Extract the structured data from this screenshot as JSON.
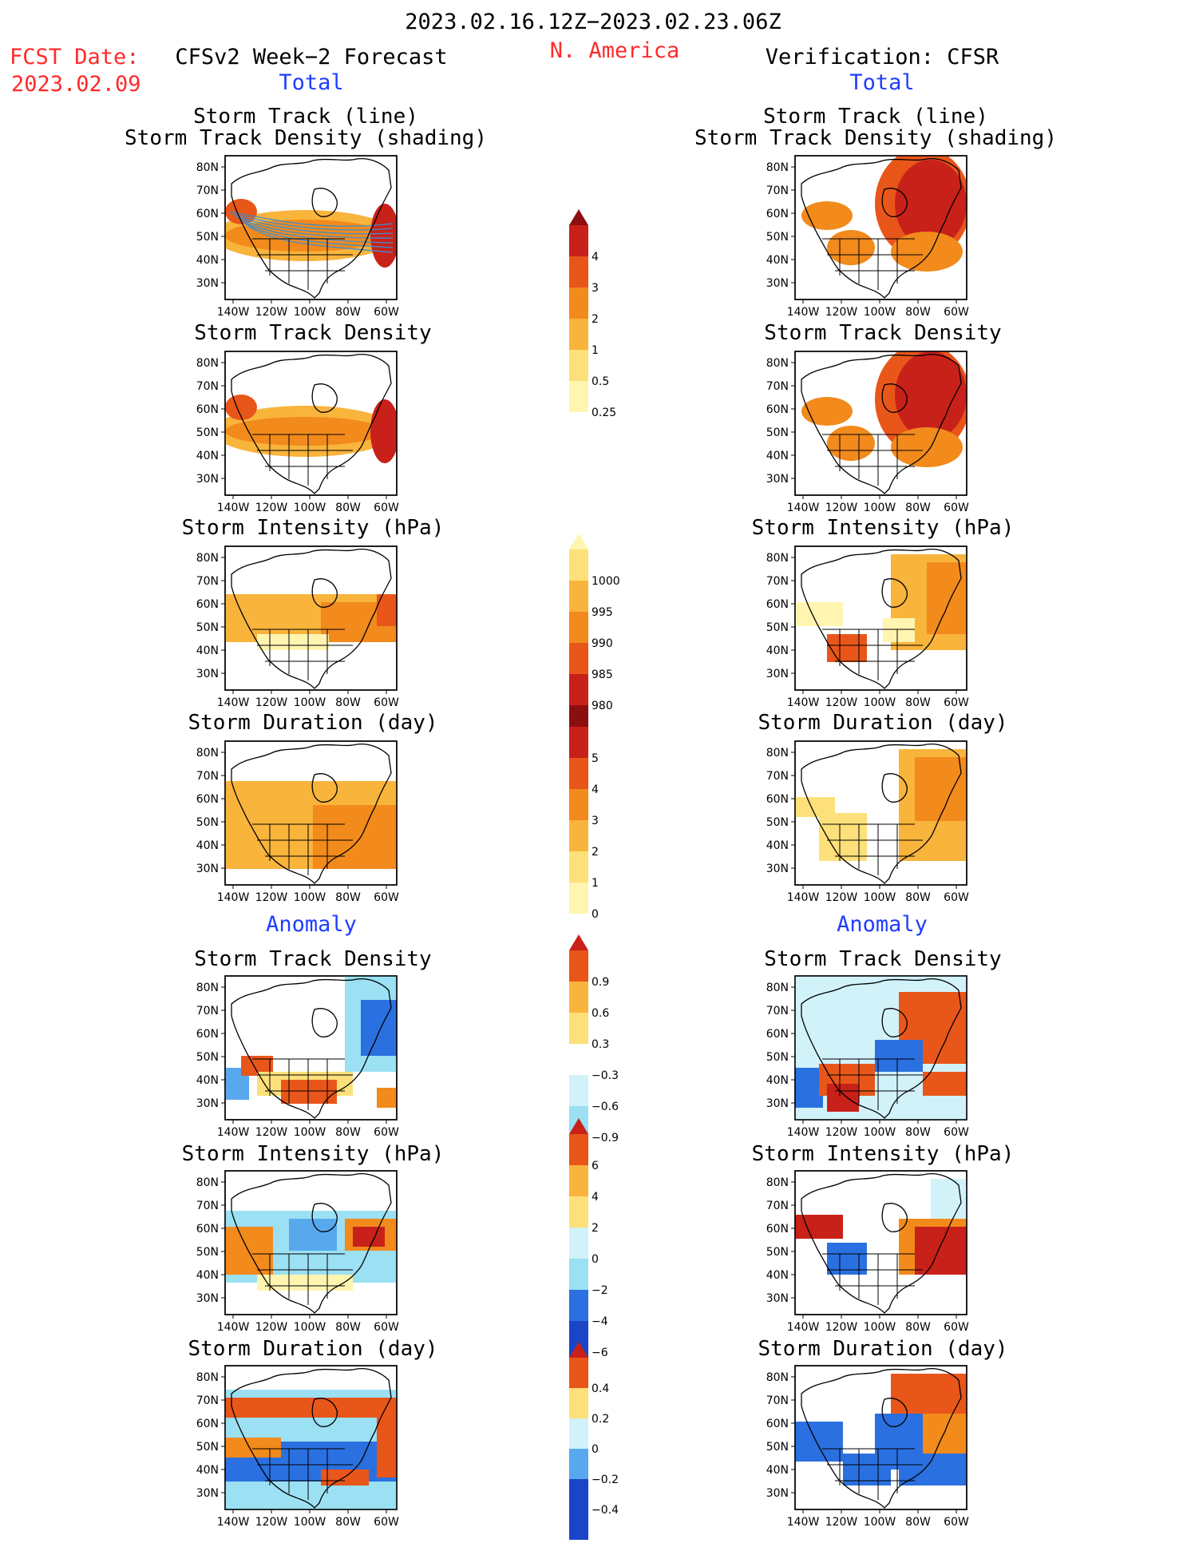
{
  "header": {
    "period": "2023.02.16.12Z−2023.02.23.06Z",
    "fcst_label": "FCST Date:",
    "fcst_date": "2023.02.09",
    "region": "N. America",
    "left_title": "CFSv2 Week−2 Forecast",
    "right_title": "Verification: CFSR",
    "left_section_total": "Total",
    "right_section_total": "Total",
    "left_section_anomaly": "Anomaly",
    "right_section_anomaly": "Anomaly"
  },
  "panel_titles": {
    "track_line": "Storm Track (line)",
    "track_shading": "Storm Track Density (shading)",
    "density": "Storm Track Density",
    "intensity": "Storm Intensity (hPa)",
    "duration": "Storm Duration (day)"
  },
  "axes": {
    "lat_ticks": [
      "80N",
      "70N",
      "60N",
      "50N",
      "40N",
      "30N"
    ],
    "lon_ticks": [
      "140W",
      "120W",
      "100W",
      "80W",
      "60W"
    ]
  },
  "colorbars": {
    "density_total": [
      "0.25",
      "0.5",
      "1",
      "2",
      "3",
      "4"
    ],
    "intensity_total": [
      "1000",
      "995",
      "990",
      "985",
      "980"
    ],
    "duration_total": [
      "0",
      "1",
      "2",
      "3",
      "4",
      "5"
    ],
    "density_anom": [
      "0.9",
      "0.6",
      "0.3",
      "−0.3",
      "−0.6",
      "−0.9"
    ],
    "intensity_anom": [
      "6",
      "4",
      "2",
      "0",
      "−2",
      "−4",
      "−6"
    ],
    "duration_anom": [
      "0.4",
      "0.2",
      "0",
      "−0.2",
      "−0.4"
    ]
  },
  "colors": {
    "scale_warm": [
      "#fff5b0",
      "#fde07a",
      "#f9b43c",
      "#f28a1c",
      "#e8561a",
      "#c8211a",
      "#8c0f0f"
    ],
    "scale_cool": [
      "#d2f2fa",
      "#9be0f3",
      "#58a8ee",
      "#2a70e0",
      "#1a45c8"
    ],
    "track_line": "#3d8fcf"
  }
}
